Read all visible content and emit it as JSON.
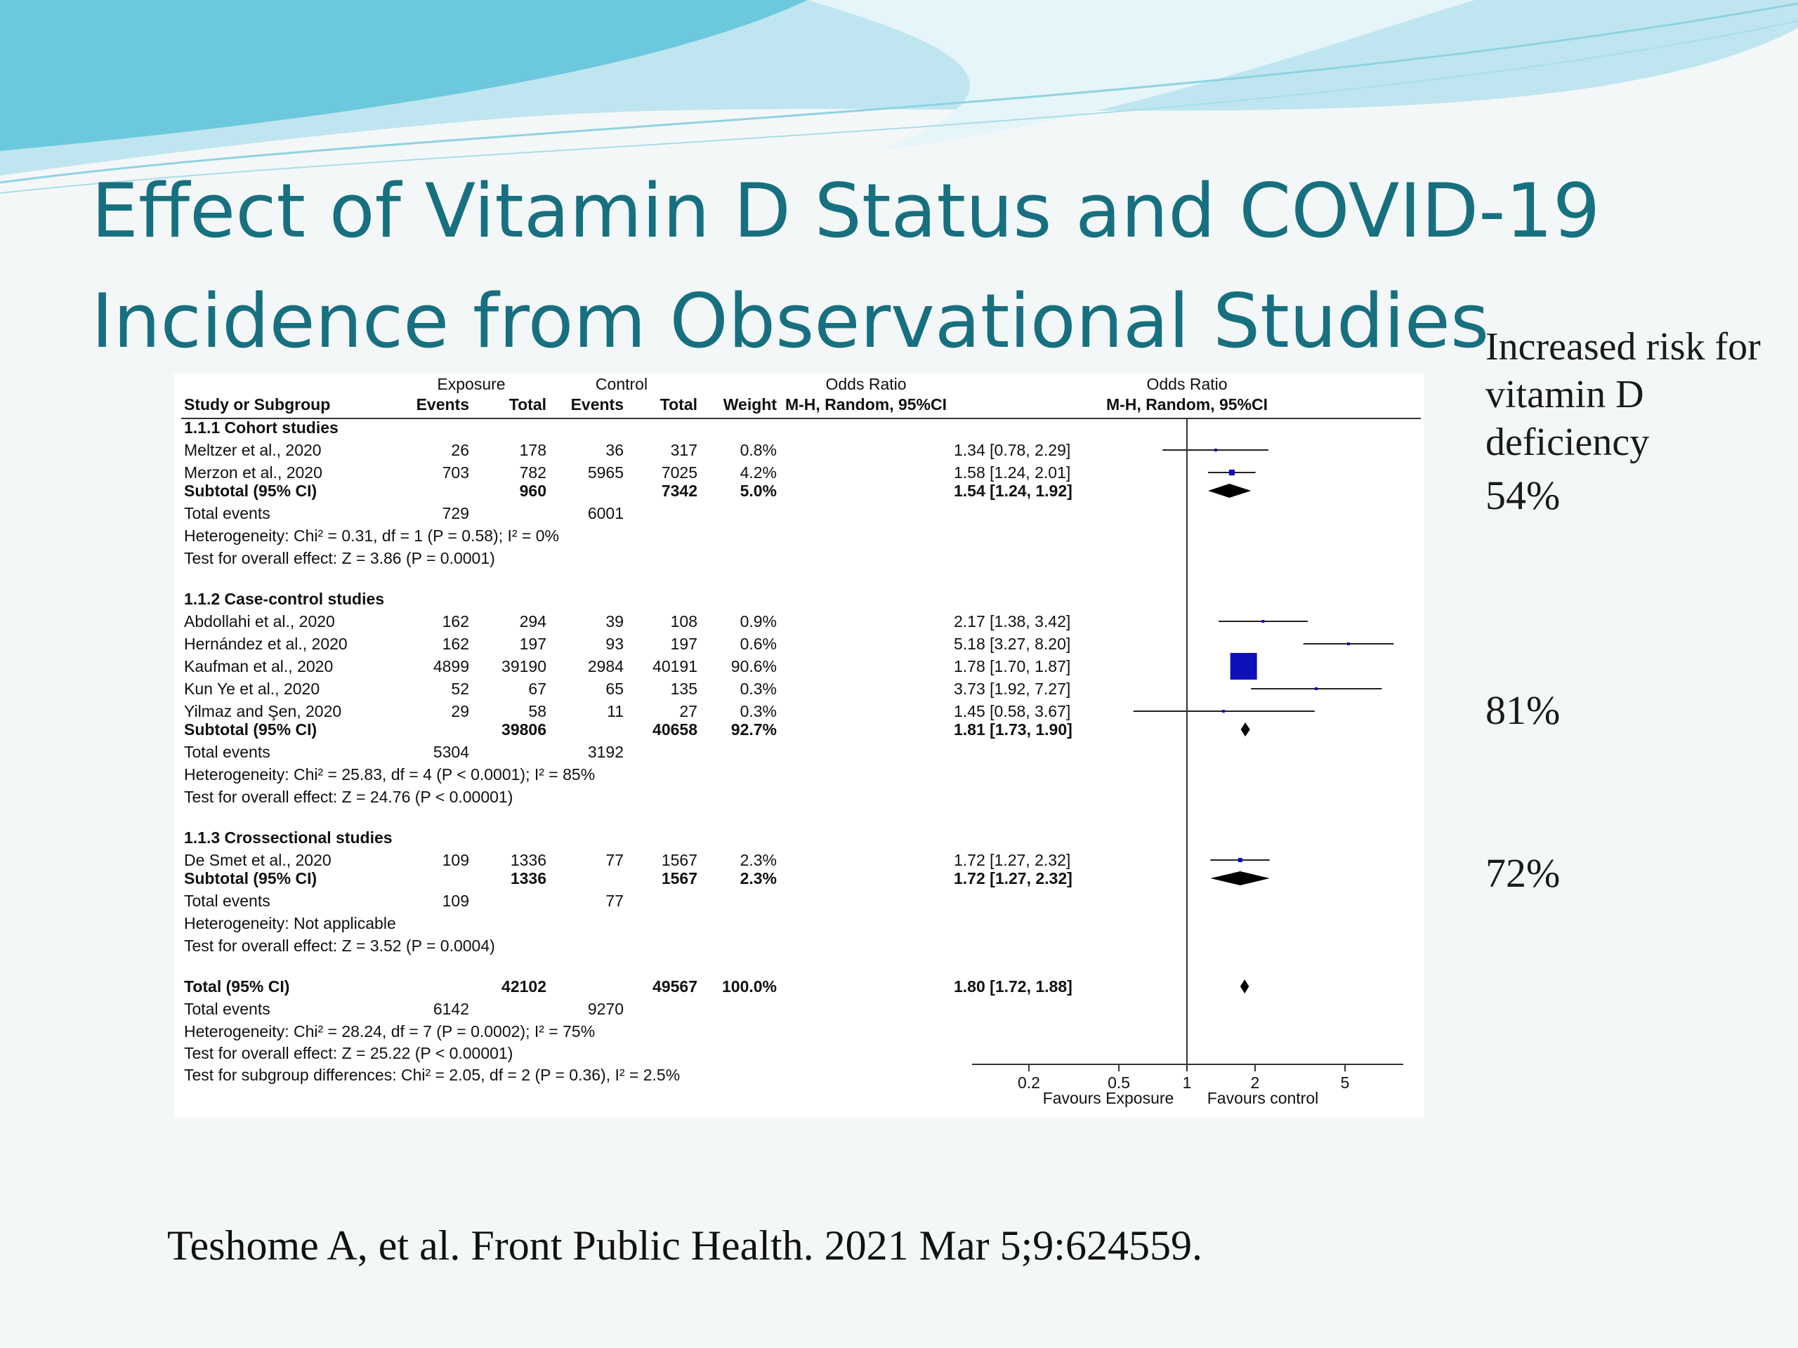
{
  "slide": {
    "title_line1": "Effect of Vitamin D Status and COVID-19",
    "title_line2": "Incidence from Observational Studies",
    "side_note": "Increased risk for vitamin D deficiency",
    "pct_cohort": "54%",
    "pct_case_control": "81%",
    "pct_cross_sectional": "72%",
    "citation": "Teshome A, et al. Front Public Health. 2021 Mar 5;9:624559."
  },
  "colors": {
    "title": "#17707f",
    "square": "#1010b8",
    "wave_light": "#bfe6f0",
    "wave_dark": "#6cc9dd"
  },
  "chart_data": {
    "type": "forest",
    "header": {
      "group1": "Exposure",
      "group2": "Control",
      "or_group": "Odds Ratio",
      "or_method": "M-H, Random, 95%CI",
      "plot_group": "Odds Ratio",
      "plot_method": "M-H, Random, 95%CI",
      "columns": [
        "Study or Subgroup",
        "Events",
        "Total",
        "Events",
        "Total",
        "Weight"
      ]
    },
    "subgroups": [
      {
        "label": "1.1.1 Cohort studies",
        "studies": [
          {
            "name": "Meltzer et al., 2020",
            "exp_events": "26",
            "exp_total": "178",
            "ctl_events": "36",
            "ctl_total": "317",
            "weight": "0.8%",
            "or_text": "1.34 [0.78, 2.29]",
            "or": 1.34,
            "lo": 0.78,
            "hi": 2.29
          },
          {
            "name": "Merzon et al., 2020",
            "exp_events": "703",
            "exp_total": "782",
            "ctl_events": "5965",
            "ctl_total": "7025",
            "weight": "4.2%",
            "or_text": "1.58 [1.24, 2.01]",
            "or": 1.58,
            "lo": 1.24,
            "hi": 2.01
          }
        ],
        "subtotal": {
          "label": "Subtotal (95% CI)",
          "exp_total": "960",
          "ctl_total": "7342",
          "weight": "5.0%",
          "or_text": "1.54 [1.24, 1.92]",
          "or": 1.54,
          "lo": 1.24,
          "hi": 1.92
        },
        "events": {
          "label": "Total events",
          "exp": "729",
          "ctl": "6001"
        },
        "heterogeneity": "Heterogeneity: Chi² = 0.31, df = 1 (P = 0.58); I² = 0%",
        "overall": "Test for overall effect: Z = 3.86 (P = 0.0001)"
      },
      {
        "label": "1.1.2 Case-control studies",
        "studies": [
          {
            "name": "Abdollahi et al., 2020",
            "exp_events": "162",
            "exp_total": "294",
            "ctl_events": "39",
            "ctl_total": "108",
            "weight": "0.9%",
            "or_text": "2.17 [1.38, 3.42]",
            "or": 2.17,
            "lo": 1.38,
            "hi": 3.42
          },
          {
            "name": "Hernández et al., 2020",
            "exp_events": "162",
            "exp_total": "197",
            "ctl_events": "93",
            "ctl_total": "197",
            "weight": "0.6%",
            "or_text": "5.18 [3.27, 8.20]",
            "or": 5.18,
            "lo": 3.27,
            "hi": 8.2
          },
          {
            "name": "Kaufman et al., 2020",
            "exp_events": "4899",
            "exp_total": "39190",
            "ctl_events": "2984",
            "ctl_total": "40191",
            "weight": "90.6%",
            "or_text": "1.78 [1.70, 1.87]",
            "or": 1.78,
            "lo": 1.7,
            "hi": 1.87
          },
          {
            "name": "Kun Ye et al., 2020",
            "exp_events": "52",
            "exp_total": "67",
            "ctl_events": "65",
            "ctl_total": "135",
            "weight": "0.3%",
            "or_text": "3.73 [1.92, 7.27]",
            "or": 3.73,
            "lo": 1.92,
            "hi": 7.27
          },
          {
            "name": "Yilmaz and Şen, 2020",
            "exp_events": "29",
            "exp_total": "58",
            "ctl_events": "11",
            "ctl_total": "27",
            "weight": "0.3%",
            "or_text": "1.45 [0.58, 3.67]",
            "or": 1.45,
            "lo": 0.58,
            "hi": 3.67
          }
        ],
        "subtotal": {
          "label": "Subtotal (95% CI)",
          "exp_total": "39806",
          "ctl_total": "40658",
          "weight": "92.7%",
          "or_text": "1.81 [1.73, 1.90]",
          "or": 1.81,
          "lo": 1.73,
          "hi": 1.9
        },
        "events": {
          "label": "Total events",
          "exp": "5304",
          "ctl": "3192"
        },
        "heterogeneity": "Heterogeneity: Chi² = 25.83, df = 4 (P < 0.0001); I² = 85%",
        "overall": "Test for overall effect: Z = 24.76 (P < 0.00001)"
      },
      {
        "label": "1.1.3 Crossectional studies",
        "studies": [
          {
            "name": "De Smet et al., 2020",
            "exp_events": "109",
            "exp_total": "1336",
            "ctl_events": "77",
            "ctl_total": "1567",
            "weight": "2.3%",
            "or_text": "1.72 [1.27, 2.32]",
            "or": 1.72,
            "lo": 1.27,
            "hi": 2.32
          }
        ],
        "subtotal": {
          "label": "Subtotal (95% CI)",
          "exp_total": "1336",
          "ctl_total": "1567",
          "weight": "2.3%",
          "or_text": "1.72 [1.27, 2.32]",
          "or": 1.72,
          "lo": 1.27,
          "hi": 2.32
        },
        "events": {
          "label": "Total events",
          "exp": "109",
          "ctl": "77"
        },
        "heterogeneity": "Heterogeneity: Not applicable",
        "overall": "Test for overall effect: Z = 3.52 (P = 0.0004)"
      }
    ],
    "total": {
      "label": "Total (95% CI)",
      "exp_total": "42102",
      "ctl_total": "49567",
      "weight": "100.0%",
      "or_text": "1.80 [1.72, 1.88]",
      "or": 1.8,
      "lo": 1.72,
      "hi": 1.88
    },
    "total_events": {
      "label": "Total events",
      "exp": "6142",
      "ctl": "9270"
    },
    "footer": [
      "Heterogeneity: Chi² = 28.24, df = 7 (P = 0.0002); I² = 75%",
      "Test for overall effect: Z = 25.22 (P < 0.00001)",
      "Test for subgroup differences: Chi² = 2.05, df = 2 (P = 0.36), I² = 2.5%"
    ],
    "x_axis": {
      "scale": "log",
      "ticks": [
        0.2,
        0.5,
        1,
        2,
        5
      ],
      "tick_labels": [
        "0.2",
        "0.5",
        "1",
        "2",
        "5"
      ],
      "range": [
        0.1,
        10
      ]
    },
    "favours_left": "Favours Exposure",
    "favours_right": "Favours control"
  }
}
